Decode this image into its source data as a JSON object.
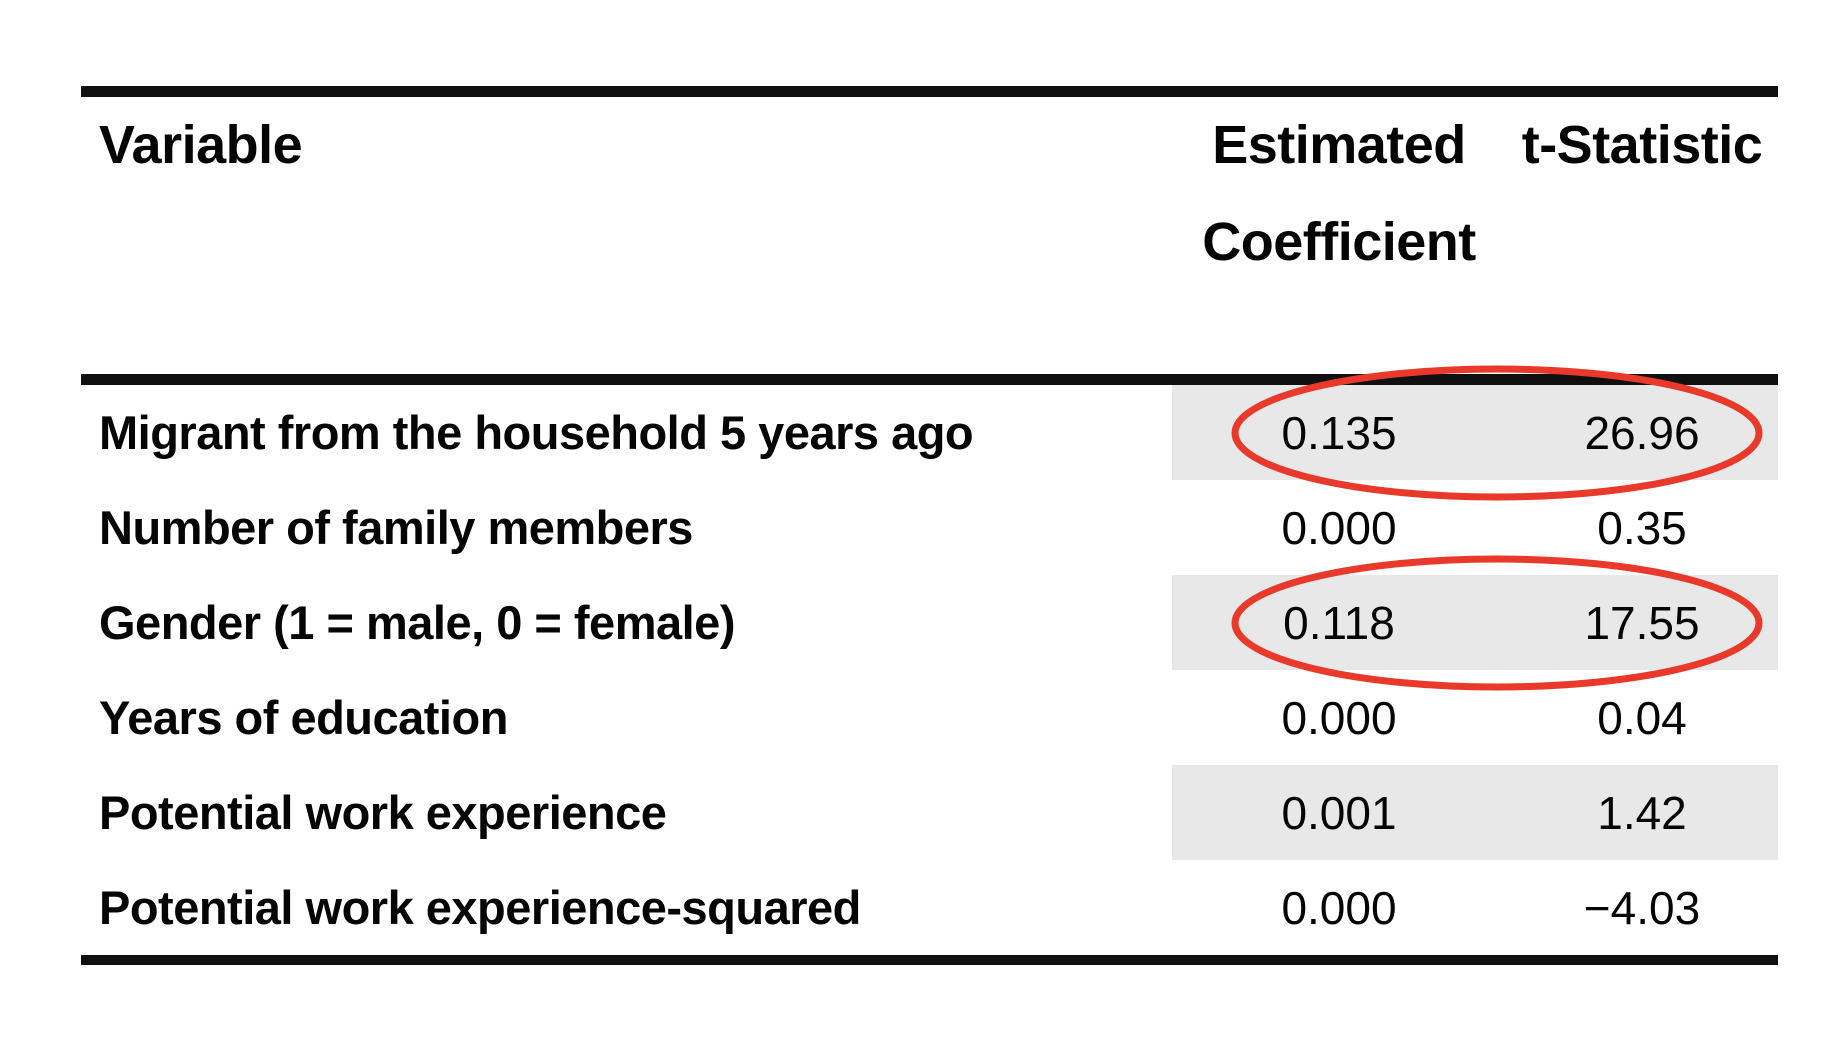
{
  "table": {
    "headers": {
      "variable": "Variable",
      "coefficient_line1": "Estimated",
      "coefficient_line2": "Coefficient",
      "t_statistic": "t-Statistic"
    },
    "rows": [
      {
        "variable": "Migrant from the household 5 years ago",
        "coefficient": "0.135",
        "t_statistic": "26.96",
        "shaded": true,
        "circled": true
      },
      {
        "variable": "Number of family members",
        "coefficient": "0.000",
        "t_statistic": "0.35",
        "shaded": false,
        "circled": false
      },
      {
        "variable": "Gender (1 = male, 0 = female)",
        "coefficient": "0.118",
        "t_statistic": "17.55",
        "shaded": true,
        "circled": true
      },
      {
        "variable": "Years of education",
        "coefficient": "0.000",
        "t_statistic": "0.04",
        "shaded": false,
        "circled": false
      },
      {
        "variable": "Potential work experience",
        "coefficient": "0.001",
        "t_statistic": "1.42",
        "shaded": true,
        "circled": false
      },
      {
        "variable": "Potential work experience-squared",
        "coefficient": "0.000",
        "t_statistic": "−4.03",
        "shaded": false,
        "circled": false
      }
    ],
    "colors": {
      "highlight_ellipse": "#e8392b",
      "row_shading": "#e8e8e8",
      "rule": "#101010",
      "text": "#050505"
    }
  }
}
